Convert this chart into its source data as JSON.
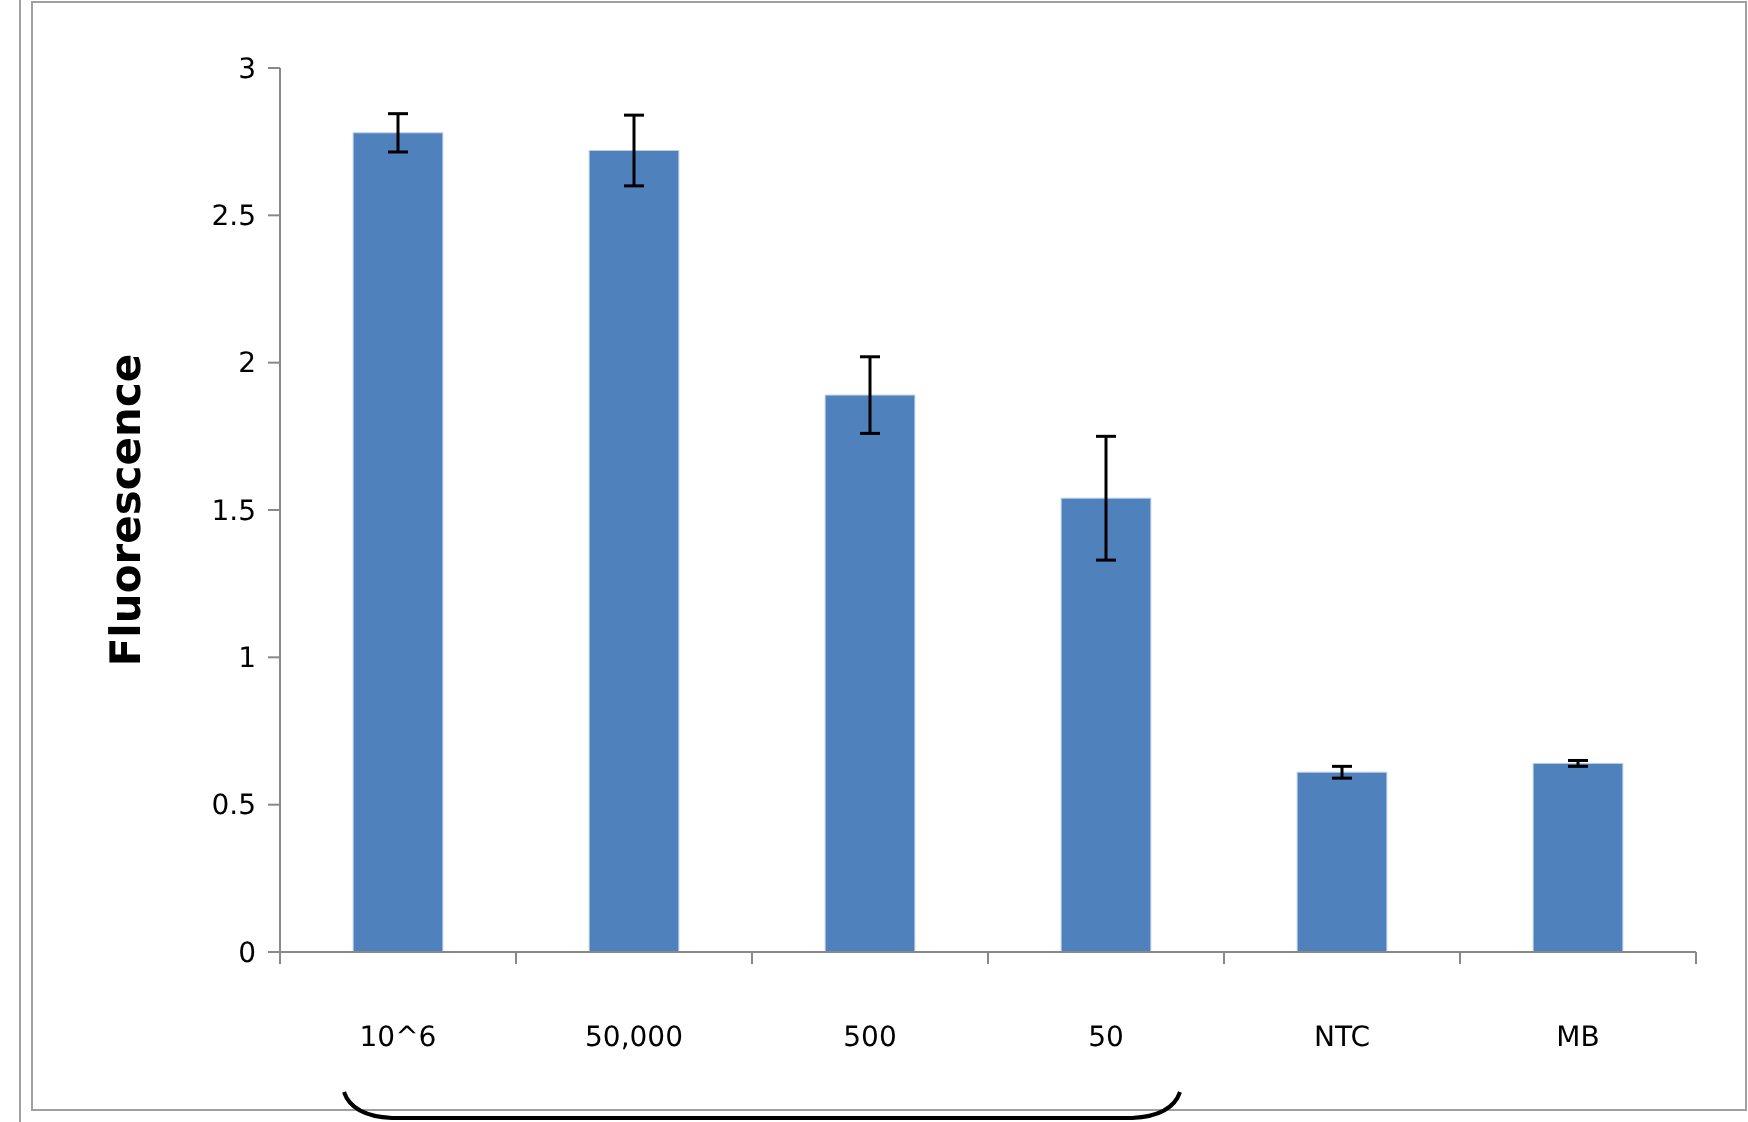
{
  "chart_data": {
    "type": "bar",
    "categories": [
      "10^6",
      "50,000",
      "500",
      "50",
      "NTC",
      "MB"
    ],
    "values": [
      2.78,
      2.72,
      1.89,
      1.54,
      0.61,
      0.64
    ],
    "errors": [
      0.065,
      0.12,
      0.13,
      0.21,
      0.02,
      0.01
    ],
    "color": "#4f81bd",
    "ylabel": "Fluorescence",
    "ylim": [
      0,
      3
    ],
    "yticks": [
      0,
      0.5,
      1,
      1.5,
      2,
      2.5,
      3
    ]
  }
}
